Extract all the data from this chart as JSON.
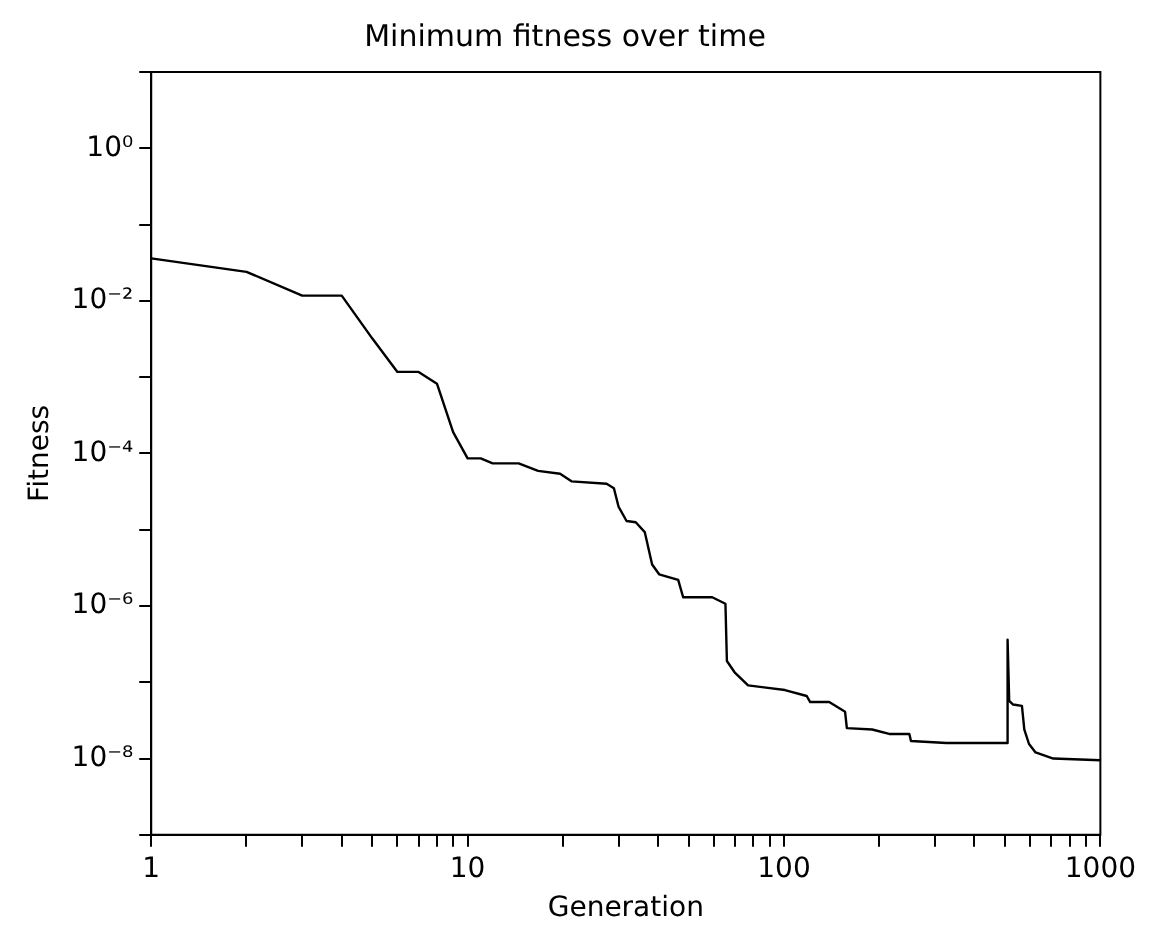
{
  "chart_data": {
    "type": "line",
    "title": "Minimum fitness over time",
    "xlabel": "Generation",
    "ylabel": "Fitness",
    "log": "xy",
    "grid": false,
    "legend": false,
    "marker": "none",
    "line_style": "solid",
    "xlim": [
      1,
      1000
    ],
    "xticks": [
      1,
      {
        "value": 2,
        "label": null
      },
      {
        "value": 3,
        "label": null
      },
      {
        "value": 4,
        "label": null
      },
      {
        "value": 5,
        "label": null
      },
      {
        "value": 6,
        "label": null
      },
      {
        "value": 7,
        "label": null
      },
      {
        "value": 8,
        "label": null
      },
      {
        "value": 9,
        "label": null
      },
      10,
      {
        "value": 20,
        "label": null
      },
      {
        "value": 30,
        "label": null
      },
      {
        "value": 40,
        "label": null
      },
      {
        "value": 50,
        "label": null
      },
      {
        "value": 60,
        "label": null
      },
      {
        "value": 70,
        "label": null
      },
      {
        "value": 80,
        "label": null
      },
      {
        "value": 90,
        "label": null
      },
      100,
      {
        "value": 200,
        "label": null
      },
      {
        "value": 300,
        "label": null
      },
      {
        "value": 400,
        "label": null
      },
      {
        "value": 500,
        "label": null
      },
      {
        "value": 600,
        "label": null
      },
      {
        "value": 700,
        "label": null
      },
      {
        "value": 800,
        "label": null
      },
      {
        "value": 900,
        "label": null
      },
      1000
    ],
    "ylim": [
      1e-09,
      10
    ],
    "yticks": [
      {
        "value": 1e-09,
        "label": null
      },
      {
        "value": 1e-08,
        "label": "10⁻⁸"
      },
      {
        "value": 1e-07,
        "label": null
      },
      {
        "value": 1e-06,
        "label": "10⁻⁶"
      },
      {
        "value": 1e-05,
        "label": null
      },
      {
        "value": 0.0001,
        "label": "10⁻⁴"
      },
      {
        "value": 0.001,
        "label": null
      },
      {
        "value": 0.01,
        "label": "10⁻²"
      },
      {
        "value": 0.1,
        "label": null
      },
      {
        "value": 1,
        "label": "10⁰"
      },
      {
        "value": 10,
        "label": null
      }
    ],
    "series": [
      {
        "color": "#000000",
        "x": [
          1,
          2,
          3,
          4,
          5,
          6,
          7,
          8,
          9,
          10,
          11,
          12,
          14.5,
          16.7,
          19.6,
          21.3,
          27.5,
          29,
          30,
          31.8,
          34,
          36.3,
          38.3,
          40.3,
          46.3,
          48,
          59.3,
          65.3,
          66,
          69.8,
          77,
          100.7,
          118,
          121,
          139,
          156,
          158,
          190,
          215,
          249,
          252,
          326,
          505,
          509,
          515,
          530,
          565,
          575,
          595,
          624,
          710,
          1000
        ],
        "values": [
          0.036,
          0.024,
          0.0117,
          0.0117,
          0.0032,
          0.00117,
          0.00117,
          0.00082,
          0.00019,
          8.6e-05,
          8.6e-05,
          7.4e-05,
          7.4e-05,
          5.9e-05,
          5.4e-05,
          4.3e-05,
          4e-05,
          3.5e-05,
          2e-05,
          1.3e-05,
          1.25e-05,
          9.3e-06,
          3.5e-06,
          2.6e-06,
          2.2e-06,
          1.3e-06,
          1.3e-06,
          1.07e-06,
          1.9e-07,
          1.35e-07,
          9.1e-08,
          7.9e-08,
          6.6e-08,
          5.5e-08,
          5.5e-08,
          4.1e-08,
          2.5e-08,
          2.4e-08,
          2.1e-08,
          2.1e-08,
          1.7e-08,
          1.6e-08,
          1.6e-08,
          3.6e-07,
          5.7e-08,
          5.1e-08,
          4.9e-08,
          2.4e-08,
          1.55e-08,
          1.2e-08,
          1e-08,
          9.5e-09
        ]
      }
    ]
  }
}
